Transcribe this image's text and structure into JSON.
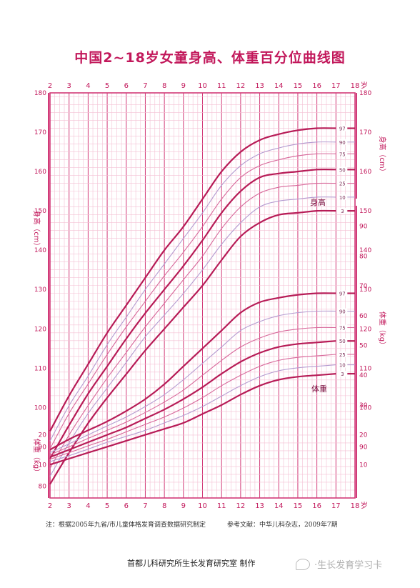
{
  "title": "中国2~18岁女童身高、体重百分位曲线图",
  "note_left": "注：根据2005年九省/市儿童体格发育调查数据研究制定",
  "note_right": "参考文献：中华儿科杂志，2009年7期",
  "footer": "首都儿科研究所生长发育研究室 制作",
  "watermark": "·生长发育学习卡",
  "watermark_icon": "wechat-icon",
  "colors": {
    "grid_minor": "#f4c0d4",
    "grid_major": "#d23a78",
    "curve_main": "#b71c57",
    "curve_mid": "#d7689a",
    "curve_light": "#b49bd0",
    "text": "#c2185b"
  },
  "chart_data": {
    "type": "line",
    "title": "中国2~18岁女童身高、体重百分位曲线图",
    "x_unit": "岁",
    "x_ticks": [
      2,
      3,
      4,
      5,
      6,
      7,
      8,
      9,
      10,
      11,
      12,
      13,
      14,
      15,
      16,
      17,
      18
    ],
    "xlim": [
      2,
      18
    ],
    "grid": true,
    "height": {
      "label": "身高",
      "ylabel": "身高（cm）",
      "ylim": [
        77,
        180
      ],
      "y_ticks_left": [
        80,
        90,
        100,
        110,
        120,
        130,
        140,
        150,
        160,
        170,
        180
      ],
      "y_ticks_right": [
        90,
        100,
        110,
        120,
        130,
        140,
        150,
        160,
        170,
        180
      ],
      "x": [
        2,
        3,
        4,
        5,
        6,
        7,
        8,
        9,
        10,
        11,
        12,
        13,
        14,
        15,
        16,
        17
      ],
      "series": [
        {
          "name": "97",
          "values": [
            94,
            103,
            111,
            119,
            126,
            133,
            140,
            146,
            153,
            160,
            165,
            168,
            169.5,
            170.5,
            171,
            171
          ]
        },
        {
          "name": "90",
          "values": [
            91.5,
            100.5,
            108,
            116,
            123,
            130,
            136.5,
            143,
            149.5,
            156.5,
            161.5,
            164.5,
            166,
            167,
            167.5,
            167.5
          ]
        },
        {
          "name": "75",
          "values": [
            89.5,
            98.5,
            106,
            113.5,
            120.5,
            127,
            133.5,
            139.5,
            146,
            153,
            158.5,
            161.5,
            163,
            164,
            164.5,
            164.5
          ]
        },
        {
          "name": "50",
          "values": [
            87,
            95.5,
            103.5,
            110.5,
            117.5,
            124,
            130,
            136,
            142.5,
            149.5,
            155,
            158.5,
            159.5,
            160,
            160.5,
            160.5
          ]
        },
        {
          "name": "25",
          "values": [
            84.5,
            93,
            100.5,
            107.5,
            114,
            120.5,
            126.5,
            132.5,
            138.5,
            145.5,
            151,
            154.5,
            156,
            156.5,
            157,
            157
          ]
        },
        {
          "name": "10",
          "values": [
            82.5,
            91,
            98.5,
            105,
            111.5,
            118,
            123.5,
            129,
            135,
            141.5,
            147,
            151,
            152.5,
            153,
            153.5,
            153.5
          ]
        },
        {
          "name": "3",
          "values": [
            80.5,
            88.5,
            96,
            102.5,
            108.5,
            114.5,
            120,
            125.5,
            131,
            137.5,
            143.5,
            147,
            149,
            149.5,
            150,
            150
          ]
        }
      ]
    },
    "weight": {
      "label": "体重",
      "ylabel": "体重（kg）",
      "ylim": [
        0,
        100
      ],
      "y_ticks_left": [
        10,
        20
      ],
      "y_ticks_right": [
        10,
        20,
        30,
        40,
        50,
        60,
        70,
        80,
        90
      ],
      "x": [
        2,
        3,
        4,
        5,
        6,
        7,
        8,
        9,
        10,
        11,
        12,
        13,
        14,
        15,
        16,
        17
      ],
      "series": [
        {
          "name": "97",
          "values": [
            15,
            18.5,
            21.5,
            24.5,
            28,
            32,
            37,
            43,
            49,
            55,
            61,
            64.5,
            66,
            67,
            67.5,
            67.5
          ]
        },
        {
          "name": "90",
          "values": [
            14,
            17,
            20,
            23,
            26,
            29.5,
            33.5,
            38.5,
            44,
            49.5,
            55,
            58,
            60,
            61,
            61.5,
            61.5
          ]
        },
        {
          "name": "75",
          "values": [
            13.3,
            16,
            18.8,
            21.5,
            24.3,
            27.5,
            31,
            35,
            40,
            45,
            49.5,
            52.5,
            54.5,
            55.5,
            56,
            56
          ]
        },
        {
          "name": "50",
          "values": [
            12.5,
            15,
            17.5,
            20,
            22.5,
            25.5,
            28.5,
            32,
            36,
            40.5,
            44.5,
            47.5,
            49.5,
            50.5,
            51,
            51.5
          ]
        },
        {
          "name": "25",
          "values": [
            11.8,
            14,
            16.3,
            18.5,
            21,
            23.5,
            26,
            29,
            32.5,
            36.5,
            40,
            43,
            45,
            46,
            46.5,
            47
          ]
        },
        {
          "name": "10",
          "values": [
            11,
            13,
            15.2,
            17.5,
            19.5,
            21.5,
            24,
            26.5,
            29.5,
            33,
            36.5,
            39.5,
            41.5,
            42.5,
            43,
            43.5
          ]
        },
        {
          "name": "3",
          "values": [
            10,
            12,
            14,
            16,
            18,
            20,
            22,
            24,
            27,
            30,
            33.5,
            36.5,
            38.5,
            39.5,
            40,
            40.5
          ]
        }
      ]
    }
  }
}
